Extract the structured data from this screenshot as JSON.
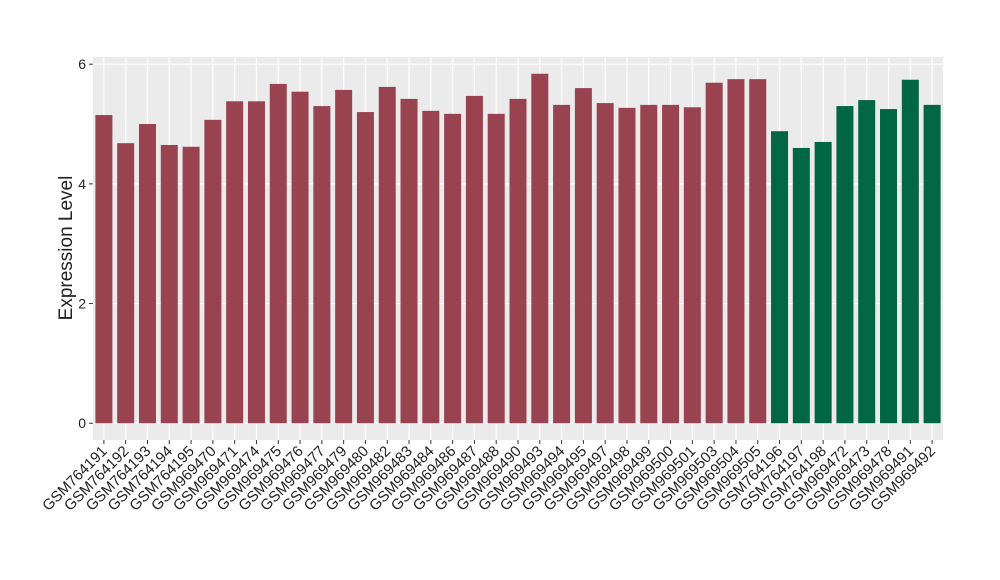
{
  "chart_data": {
    "type": "bar",
    "y_label": "Expression Level",
    "categories": [
      "GSM764191",
      "GSM764192",
      "GSM764193",
      "GSM764194",
      "GSM764195",
      "GSM969470",
      "GSM969471",
      "GSM969474",
      "GSM969475",
      "GSM969476",
      "GSM969477",
      "GSM969479",
      "GSM969480",
      "GSM969482",
      "GSM969483",
      "GSM969484",
      "GSM969486",
      "GSM969487",
      "GSM969488",
      "GSM969490",
      "GSM969493",
      "GSM969494",
      "GSM969495",
      "GSM969497",
      "GSM969498",
      "GSM969499",
      "GSM969500",
      "GSM969501",
      "GSM969503",
      "GSM969504",
      "GSM969505",
      "GSM764196",
      "GSM764197",
      "GSM764198",
      "GSM969472",
      "GSM969473",
      "GSM969478",
      "GSM969491",
      "GSM969492"
    ],
    "values": [
      5.15,
      4.68,
      5.0,
      4.65,
      4.62,
      5.07,
      5.38,
      5.38,
      5.67,
      5.54,
      5.3,
      5.57,
      5.2,
      5.62,
      5.42,
      5.22,
      5.17,
      5.47,
      5.17,
      5.42,
      5.84,
      5.32,
      5.6,
      5.35,
      5.27,
      5.32,
      5.32,
      5.28,
      5.69,
      5.75,
      5.75,
      4.88,
      4.6,
      4.7,
      5.3,
      5.4,
      5.25,
      5.74,
      5.32
    ],
    "colors": [
      "#9a4350",
      "#9a4350",
      "#9a4350",
      "#9a4350",
      "#9a4350",
      "#9a4350",
      "#9a4350",
      "#9a4350",
      "#9a4350",
      "#9a4350",
      "#9a4350",
      "#9a4350",
      "#9a4350",
      "#9a4350",
      "#9a4350",
      "#9a4350",
      "#9a4350",
      "#9a4350",
      "#9a4350",
      "#9a4350",
      "#9a4350",
      "#9a4350",
      "#9a4350",
      "#9a4350",
      "#9a4350",
      "#9a4350",
      "#9a4350",
      "#9a4350",
      "#9a4350",
      "#9a4350",
      "#9a4350",
      "#006644",
      "#006644",
      "#006644",
      "#006644",
      "#006644",
      "#006644",
      "#006644",
      "#006644"
    ],
    "ylim": [
      -0.28,
      6.12
    ],
    "yticks": [
      0,
      2,
      4,
      6
    ],
    "grid": true
  }
}
